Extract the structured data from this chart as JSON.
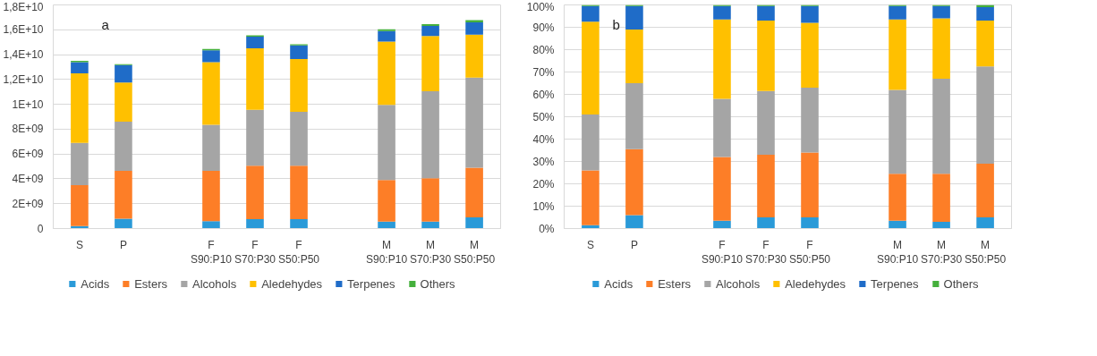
{
  "chart_data": [
    {
      "type": "bar",
      "stacked": true,
      "grid": "y",
      "legend": "bottom",
      "annotations": [
        "a"
      ],
      "categories": [
        "S",
        "P",
        null,
        "F\nS90:P10",
        "F\nS70:P30",
        "F\nS50:P50",
        null,
        "M\nS90:P10",
        "M\nS70:P30",
        "M\nS50:P50"
      ],
      "ylim": [
        0,
        18000000000
      ],
      "yticks": [
        0,
        {
          "value": 2000000000,
          "label": "2E+09"
        },
        {
          "value": 4000000000,
          "label": "4E+09"
        },
        {
          "value": 6000000000,
          "label": "6E+09"
        },
        {
          "value": 8000000000,
          "label": "8E+09"
        },
        {
          "value": 10000000000,
          "label": "1E+10"
        },
        {
          "value": 12000000000,
          "label": "1,2E+10"
        },
        {
          "value": 14000000000,
          "label": "1,4E+10"
        },
        {
          "value": 16000000000,
          "label": "1,6E+10"
        },
        {
          "value": 18000000000,
          "label": "1,8E+10"
        }
      ],
      "series": [
        {
          "name": "Acids",
          "color": "#2a9ad8",
          "values": [
            200000000,
            800000000,
            null,
            600000000,
            750000000,
            750000000,
            null,
            550000000,
            550000000,
            900000000
          ]
        },
        {
          "name": "Esters",
          "color": "#fd7e27",
          "values": [
            3300000000,
            3850000000,
            null,
            4050000000,
            4300000000,
            4300000000,
            null,
            3350000000,
            3500000000,
            4000000000
          ]
        },
        {
          "name": "Alcohols",
          "color": "#a5a5a5",
          "values": [
            3400000000,
            3950000000,
            null,
            3700000000,
            4500000000,
            4350000000,
            null,
            6050000000,
            7000000000,
            7250000000
          ]
        },
        {
          "name": "Aledehydes",
          "color": "#ffc000",
          "values": [
            5600000000,
            3150000000,
            null,
            5050000000,
            4950000000,
            4250000000,
            null,
            5100000000,
            4450000000,
            3450000000
          ]
        },
        {
          "name": "Terpenes",
          "color": "#1f6cc8",
          "values": [
            900000000,
            1400000000,
            null,
            950000000,
            950000000,
            1100000000,
            null,
            850000000,
            800000000,
            1000000000
          ]
        },
        {
          "name": "Others",
          "color": "#45b03c",
          "values": [
            100000000,
            80000000,
            null,
            100000000,
            100000000,
            80000000,
            null,
            130000000,
            150000000,
            180000000
          ]
        }
      ]
    },
    {
      "type": "bar",
      "stacked": true,
      "grid": "y",
      "legend": "bottom",
      "annotations": [
        "b"
      ],
      "categories": [
        "S",
        "P",
        null,
        "F\nS90:P10",
        "F\nS70:P30",
        "F\nS50:P50",
        null,
        "M\nS90:P10",
        "M\nS70:P30",
        "M\nS50:P50"
      ],
      "ylim": [
        0,
        100
      ],
      "yticks": [
        {
          "value": 0,
          "label": "0%"
        },
        {
          "value": 10,
          "label": "10%"
        },
        {
          "value": 20,
          "label": "20%"
        },
        {
          "value": 30,
          "label": "30%"
        },
        {
          "value": 40,
          "label": "40%"
        },
        {
          "value": 50,
          "label": "50%"
        },
        {
          "value": 60,
          "label": "60%"
        },
        {
          "value": 70,
          "label": "70%"
        },
        {
          "value": 80,
          "label": "80%"
        },
        {
          "value": 90,
          "label": "90%"
        },
        {
          "value": 100,
          "label": "100%"
        }
      ],
      "series": [
        {
          "name": "Acids",
          "color": "#2a9ad8",
          "values": [
            1.5,
            6,
            null,
            3.5,
            5,
            5,
            null,
            3.5,
            3,
            5
          ]
        },
        {
          "name": "Esters",
          "color": "#fd7e27",
          "values": [
            24.5,
            29.5,
            null,
            28.5,
            28,
            29,
            null,
            21,
            21.5,
            24
          ]
        },
        {
          "name": "Alcohols",
          "color": "#a5a5a5",
          "values": [
            25,
            29.5,
            null,
            26,
            28.5,
            29,
            null,
            37.5,
            42.5,
            43.5
          ]
        },
        {
          "name": "Aledehydes",
          "color": "#ffc000",
          "values": [
            41.5,
            24,
            null,
            35.5,
            31.5,
            29,
            null,
            31.5,
            27,
            20.5
          ]
        },
        {
          "name": "Terpenes",
          "color": "#1f6cc8",
          "values": [
            7,
            10.5,
            null,
            6,
            6.5,
            7.5,
            null,
            6,
            5.5,
            6
          ]
        },
        {
          "name": "Others",
          "color": "#45b03c",
          "values": [
            0.5,
            0.5,
            null,
            0.5,
            0.5,
            0.5,
            null,
            0.5,
            0.5,
            1
          ]
        }
      ]
    }
  ]
}
